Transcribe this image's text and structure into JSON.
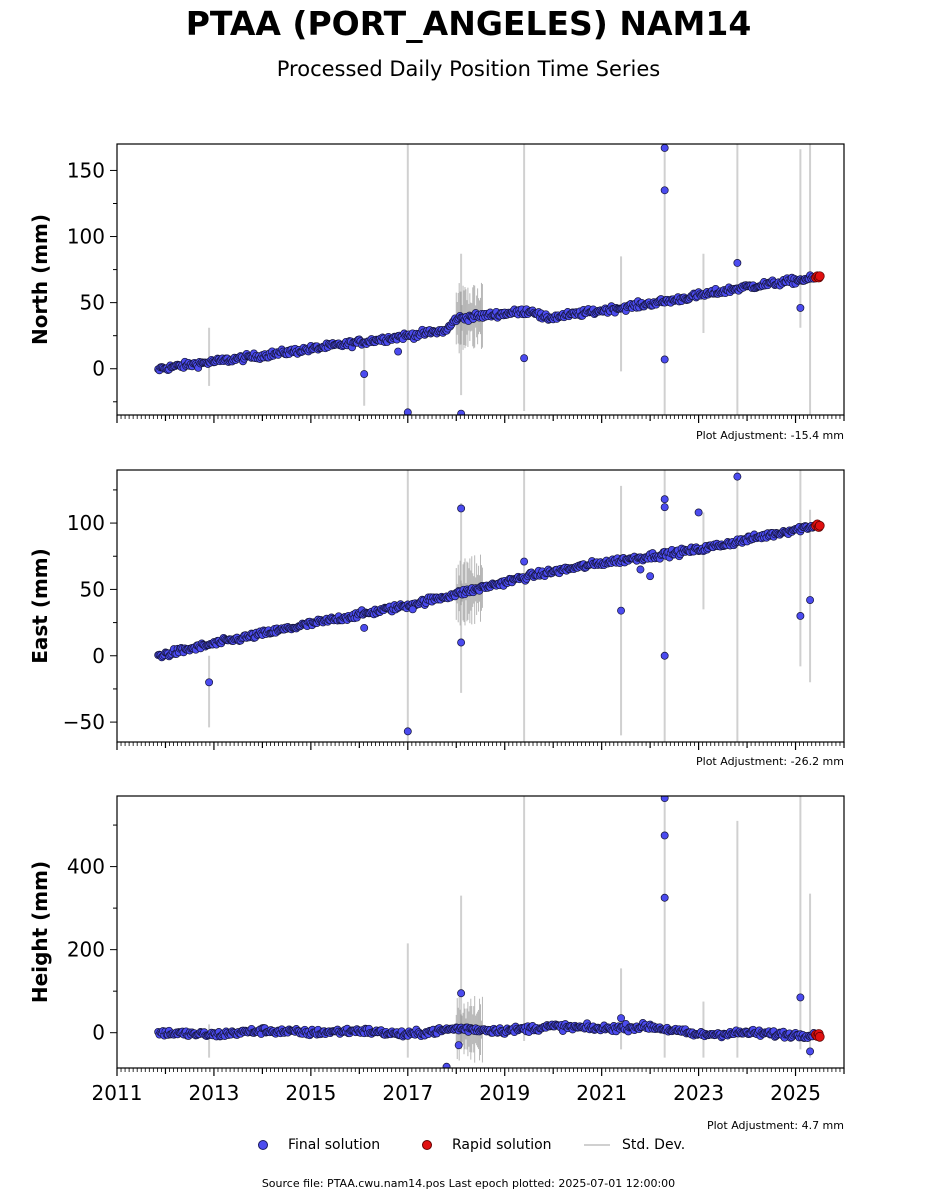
{
  "title": "PTAA (PORT_ANGELES) NAM14",
  "subtitle": "Processed Daily Position Time Series",
  "colors": {
    "final": "#4b4bef",
    "rapid": "#e01010",
    "stddev": "#d0d0d0"
  },
  "legend": {
    "final": "Final solution",
    "rapid": "Rapid solution",
    "stddev": "Std. Dev."
  },
  "source": "Source file: PTAA.cwu.nam14.pos  Last epoch plotted: 2025-07-01 12:00:00",
  "chart_data": [
    {
      "type": "scatter",
      "ylabel": "North (mm)",
      "adjustment": "Plot Adjustment: -15.4 mm",
      "xlim": [
        2011,
        2026
      ],
      "ylim": [
        -35,
        170
      ],
      "yticks": [
        0,
        50,
        100,
        150
      ],
      "xticks": [
        2011,
        2013,
        2015,
        2017,
        2019,
        2021,
        2023,
        2025
      ],
      "xtick_labels": [],
      "trend": [
        [
          2011.85,
          0
        ],
        [
          2014,
          10
        ],
        [
          2016,
          20
        ],
        [
          2017.8,
          29
        ],
        [
          2018.0,
          38
        ],
        [
          2019.6,
          44
        ],
        [
          2019.8,
          38
        ],
        [
          2021,
          44
        ],
        [
          2022.5,
          52
        ],
        [
          2024,
          62
        ],
        [
          2025.5,
          69
        ]
      ],
      "outliers": [
        [
          2016.1,
          -4
        ],
        [
          2017.0,
          -33
        ],
        [
          2018.1,
          -34
        ],
        [
          2019.4,
          8
        ],
        [
          2022.3,
          167
        ],
        [
          2022.3,
          135
        ],
        [
          2022.3,
          7
        ],
        [
          2023.8,
          80
        ],
        [
          2025.1,
          46
        ],
        [
          2016.8,
          13
        ]
      ],
      "stddev": [
        [
          2012.9,
          -13,
          31
        ],
        [
          2016.1,
          -28,
          20
        ],
        [
          2017.0,
          -35,
          170
        ],
        [
          2018.1,
          -20,
          87
        ],
        [
          2019.4,
          -32,
          170
        ],
        [
          2021.4,
          -2,
          85
        ],
        [
          2022.3,
          -35,
          170
        ],
        [
          2023.1,
          27,
          87
        ],
        [
          2023.8,
          -35,
          170
        ],
        [
          2025.1,
          31,
          166
        ],
        [
          2025.3,
          -35,
          170
        ]
      ],
      "rapid": [
        [
          2025.42,
          69
        ],
        [
          2025.45,
          70
        ],
        [
          2025.48,
          69
        ],
        [
          2025.5,
          70
        ]
      ]
    },
    {
      "type": "scatter",
      "ylabel": "East (mm)",
      "adjustment": "Plot Adjustment: -26.2 mm",
      "xlim": [
        2011,
        2026
      ],
      "ylim": [
        -65,
        140
      ],
      "yticks": [
        -50,
        0,
        50,
        100
      ],
      "xticks": [
        2011,
        2013,
        2015,
        2017,
        2019,
        2021,
        2023,
        2025
      ],
      "xtick_labels": [],
      "trend": [
        [
          2011.85,
          0
        ],
        [
          2013,
          9
        ],
        [
          2015,
          24
        ],
        [
          2017,
          38
        ],
        [
          2018.4,
          50
        ],
        [
          2019.5,
          60
        ],
        [
          2021,
          70
        ],
        [
          2023,
          80
        ],
        [
          2025.5,
          99
        ]
      ],
      "outliers": [
        [
          2012.9,
          -20
        ],
        [
          2016.1,
          21
        ],
        [
          2017.0,
          -57
        ],
        [
          2017.1,
          35
        ],
        [
          2018.1,
          111
        ],
        [
          2018.1,
          10
        ],
        [
          2019.4,
          71
        ],
        [
          2021.4,
          34
        ],
        [
          2022.3,
          118
        ],
        [
          2022.3,
          112
        ],
        [
          2022.3,
          0
        ],
        [
          2023.0,
          108
        ],
        [
          2023.8,
          135
        ],
        [
          2025.1,
          30
        ],
        [
          2025.3,
          42
        ],
        [
          2021.8,
          65
        ],
        [
          2022.0,
          60
        ]
      ],
      "stddev": [
        [
          2012.9,
          -54,
          0
        ],
        [
          2017.0,
          -65,
          140
        ],
        [
          2018.1,
          -28,
          115
        ],
        [
          2019.4,
          -65,
          140
        ],
        [
          2021.4,
          -60,
          128
        ],
        [
          2022.3,
          -65,
          140
        ],
        [
          2023.1,
          35,
          108
        ],
        [
          2023.8,
          -65,
          140
        ],
        [
          2025.1,
          -8,
          140
        ],
        [
          2025.3,
          -20,
          110
        ]
      ],
      "rapid": [
        [
          2025.42,
          98
        ],
        [
          2025.45,
          99
        ],
        [
          2025.48,
          97
        ],
        [
          2025.5,
          98
        ]
      ]
    },
    {
      "type": "scatter",
      "ylabel": "Height (mm)",
      "adjustment": "Plot Adjustment: 4.7 mm",
      "xlim": [
        2011,
        2026
      ],
      "ylim": [
        -85,
        570
      ],
      "yticks": [
        0,
        200,
        400
      ],
      "xticks": [
        2011,
        2013,
        2015,
        2017,
        2019,
        2021,
        2023,
        2025
      ],
      "xtick_labels": [
        "2011",
        "2013",
        "2015",
        "2017",
        "2019",
        "2021",
        "2023",
        "2025"
      ],
      "trend": [
        [
          2011.85,
          0
        ],
        [
          2013,
          -5
        ],
        [
          2014,
          5
        ],
        [
          2015,
          0
        ],
        [
          2016,
          5
        ],
        [
          2017,
          -5
        ],
        [
          2018,
          10
        ],
        [
          2019,
          5
        ],
        [
          2020,
          15
        ],
        [
          2021,
          10
        ],
        [
          2022,
          15
        ],
        [
          2023,
          -5
        ],
        [
          2024,
          0
        ],
        [
          2025,
          -5
        ],
        [
          2025.5,
          -5
        ]
      ],
      "outliers": [
        [
          2018.1,
          95
        ],
        [
          2018.05,
          -30
        ],
        [
          2017.8,
          -82
        ],
        [
          2022.3,
          565
        ],
        [
          2022.3,
          475
        ],
        [
          2022.3,
          325
        ],
        [
          2025.1,
          85
        ],
        [
          2025.3,
          -45
        ],
        [
          2021.4,
          35
        ]
      ],
      "stddev": [
        [
          2012.9,
          -60,
          20
        ],
        [
          2017.0,
          -60,
          215
        ],
        [
          2018.1,
          -40,
          330
        ],
        [
          2019.4,
          -20,
          570
        ],
        [
          2021.4,
          -40,
          155
        ],
        [
          2022.3,
          -60,
          570
        ],
        [
          2023.1,
          -60,
          75
        ],
        [
          2023.8,
          -60,
          510
        ],
        [
          2025.1,
          -40,
          570
        ],
        [
          2025.3,
          -60,
          335
        ]
      ],
      "rapid": [
        [
          2025.42,
          -5
        ],
        [
          2025.45,
          -8
        ],
        [
          2025.48,
          -3
        ],
        [
          2025.5,
          -10
        ]
      ]
    }
  ]
}
